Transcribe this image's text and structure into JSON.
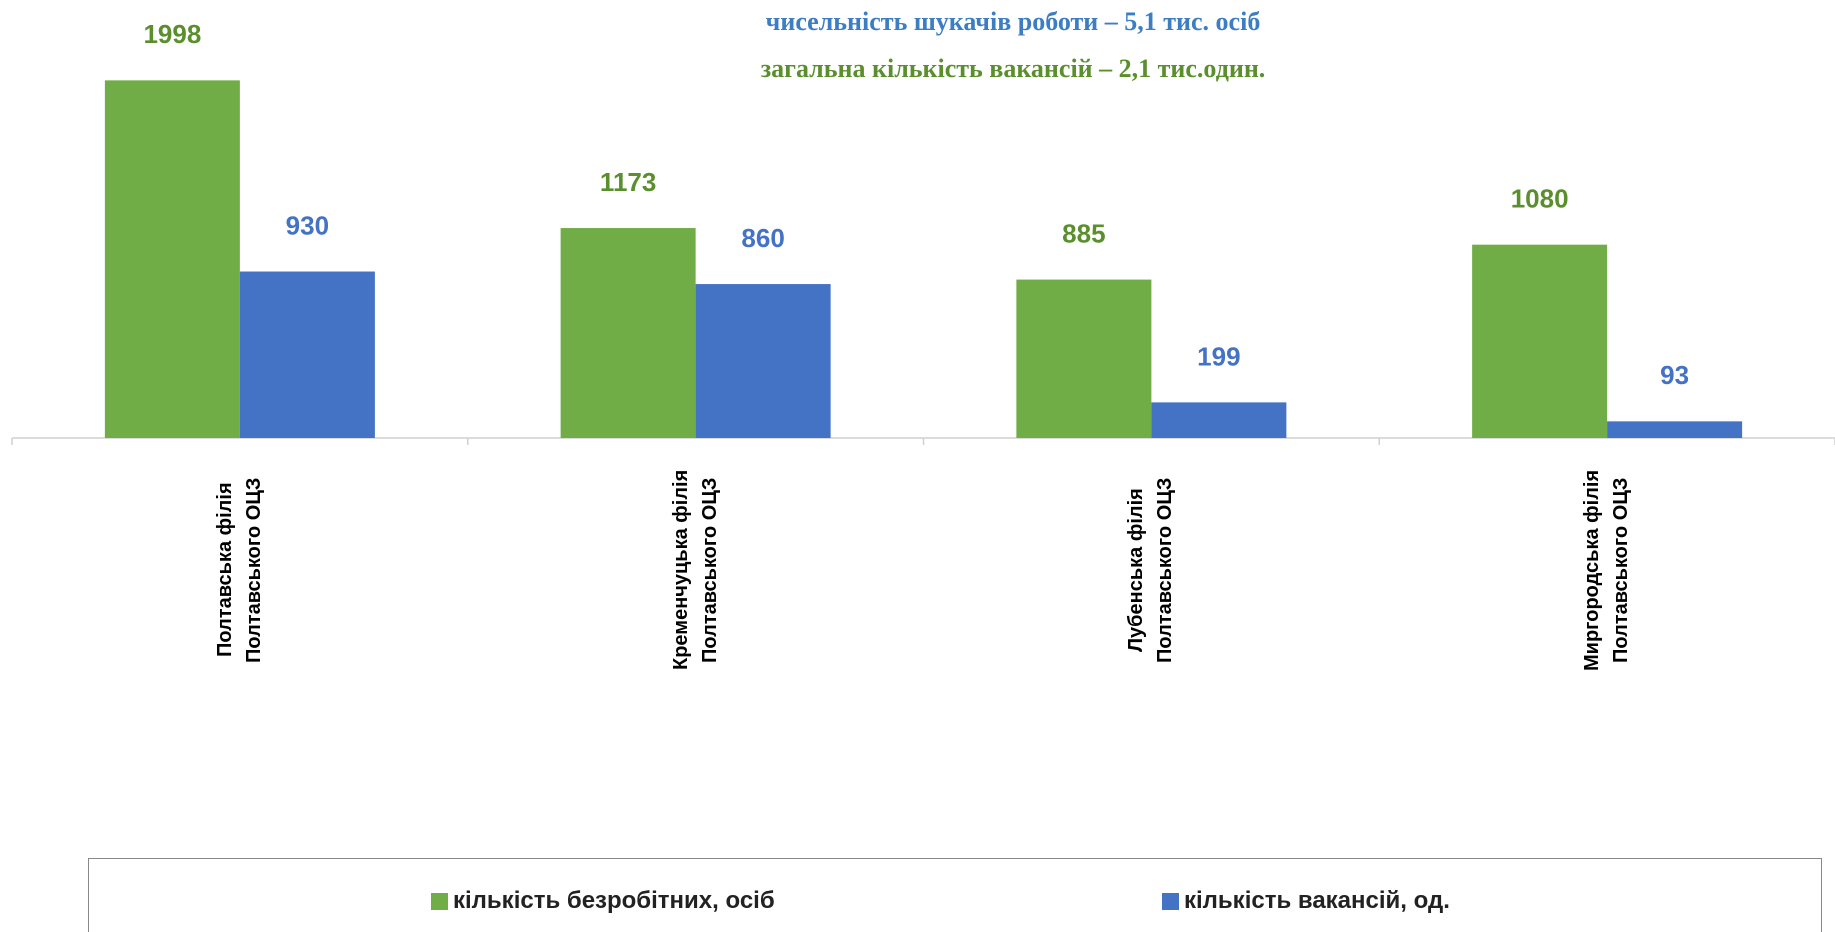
{
  "chart_data": {
    "type": "bar",
    "title": "чисельність шукачів роботи – 5,1 тис. осіб",
    "title_color": "#3c7dc4",
    "subtitle": "загальна кількість вакансій – 2,1 тис.один.",
    "subtitle_color": "#5b8f2e",
    "categories": [
      "Полтавська філія\nПолтавського ОЦЗ",
      "Кременчуцька філія\nПолтавського ОЦЗ",
      "Лубенська філія\nПолтавського ОЦЗ",
      "Миргородська філія\nПолтавського ОЦЗ"
    ],
    "series": [
      {
        "name": "кількість безробітних, осіб",
        "color": "#70ad47",
        "label_color": "#5b8f2e",
        "values": [
          1998,
          1173,
          885,
          1080
        ]
      },
      {
        "name": "кількість вакансій, од.",
        "color": "#4472c4",
        "label_color": "#4472c4",
        "values": [
          930,
          860,
          199,
          93
        ]
      }
    ],
    "ylim": [
      0,
      2000
    ]
  }
}
